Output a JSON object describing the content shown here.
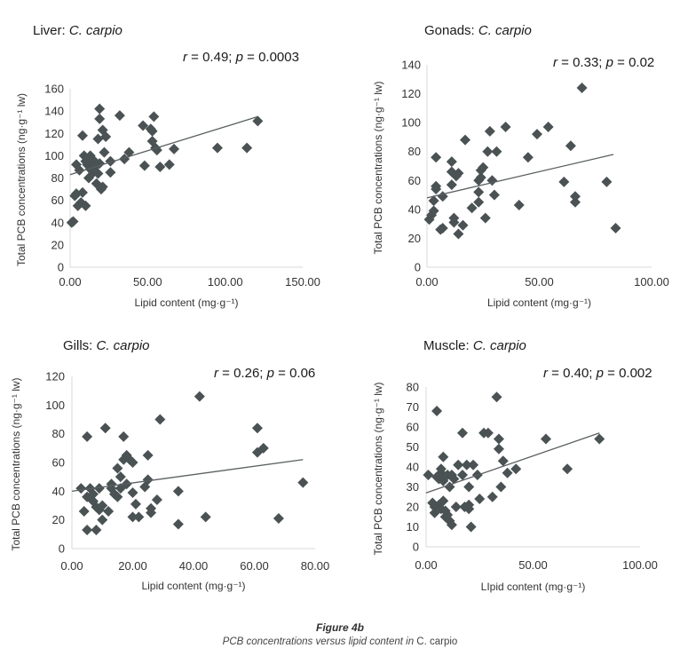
{
  "figure": {
    "title": "Figure 4b",
    "caption_pre": "PCB concentrations versus lipid content in ",
    "caption_species": "C. carpio"
  },
  "colors": {
    "marker": "#4a5254",
    "trend": "#5a5f60",
    "axis": "#d9d9d9"
  },
  "chart_data": [
    {
      "type": "scatter",
      "title_tissue": "Liver: ",
      "title_species": "C. carpio",
      "stat_r_label": "r",
      "stat_r": " = 0.49; ",
      "stat_p_label": "p",
      "stat_p": " = 0.0003",
      "xlabel": "Lipid content (mg·g⁻¹)",
      "ylabel": "Total PCB concentrations (ng·g⁻¹ lw)",
      "xlim": [
        0,
        150
      ],
      "ylim": [
        0,
        160
      ],
      "xticks": [
        "0.00",
        "50.00",
        "100.00",
        "150.00"
      ],
      "xtick_values": [
        0,
        50,
        100,
        150
      ],
      "yticks": [
        "0",
        "20",
        "40",
        "60",
        "80",
        "100",
        "120",
        "140",
        "160"
      ],
      "ytick_values": [
        0,
        20,
        40,
        60,
        80,
        100,
        120,
        140,
        160
      ],
      "trend": [
        [
          0,
          83
        ],
        [
          121,
          135
        ]
      ],
      "points": [
        [
          1,
          40
        ],
        [
          2,
          41
        ],
        [
          3,
          64
        ],
        [
          4,
          66
        ],
        [
          5,
          55
        ],
        [
          7,
          58
        ],
        [
          4,
          92
        ],
        [
          6,
          87
        ],
        [
          8,
          67
        ],
        [
          10,
          55
        ],
        [
          8,
          118
        ],
        [
          9,
          100
        ],
        [
          10,
          95
        ],
        [
          11,
          92
        ],
        [
          12,
          97
        ],
        [
          13,
          88
        ],
        [
          14,
          93
        ],
        [
          15,
          96
        ],
        [
          12,
          80
        ],
        [
          16,
          90
        ],
        [
          15,
          85
        ],
        [
          13,
          100
        ],
        [
          17,
          75
        ],
        [
          18,
          84
        ],
        [
          19,
          93
        ],
        [
          20,
          70
        ],
        [
          21,
          72
        ],
        [
          19,
          142
        ],
        [
          19,
          133
        ],
        [
          18,
          115
        ],
        [
          21,
          123
        ],
        [
          22,
          103
        ],
        [
          23,
          117
        ],
        [
          26,
          95
        ],
        [
          26,
          85
        ],
        [
          32,
          136
        ],
        [
          35,
          97
        ],
        [
          38,
          103
        ],
        [
          47,
          127
        ],
        [
          48,
          91
        ],
        [
          52,
          124
        ],
        [
          53,
          122
        ],
        [
          54,
          135
        ],
        [
          53,
          113
        ],
        [
          55,
          107
        ],
        [
          56,
          105
        ],
        [
          58,
          90
        ],
        [
          64,
          92
        ],
        [
          67,
          106
        ],
        [
          95,
          107
        ],
        [
          114,
          107
        ],
        [
          121,
          131
        ]
      ]
    },
    {
      "type": "scatter",
      "title_tissue": "Gonads: ",
      "title_species": "C. carpio",
      "stat_r_label": "r",
      "stat_r": " = 0.33; ",
      "stat_p_label": "p",
      "stat_p": " = 0.02",
      "xlabel": "Lipid content (mg·g⁻¹)",
      "ylabel": "Total PCB concentrations (ng·g⁻¹ lw)",
      "xlim": [
        0,
        100
      ],
      "ylim": [
        0,
        140
      ],
      "xticks": [
        "0.00",
        "50.00",
        "100.00"
      ],
      "xtick_values": [
        0,
        50,
        100
      ],
      "yticks": [
        "0",
        "20",
        "40",
        "60",
        "80",
        "100",
        "120",
        "140"
      ],
      "ytick_values": [
        0,
        20,
        40,
        60,
        80,
        100,
        120,
        140
      ],
      "trend": [
        [
          0,
          48
        ],
        [
          83,
          78
        ]
      ],
      "points": [
        [
          1,
          33
        ],
        [
          2,
          36
        ],
        [
          3,
          39
        ],
        [
          3,
          46
        ],
        [
          4,
          56
        ],
        [
          4,
          54
        ],
        [
          4,
          76
        ],
        [
          6,
          26
        ],
        [
          7,
          27
        ],
        [
          7,
          49
        ],
        [
          11,
          73
        ],
        [
          11,
          57
        ],
        [
          11,
          66
        ],
        [
          12,
          31
        ],
        [
          12,
          34
        ],
        [
          13,
          63
        ],
        [
          14,
          65
        ],
        [
          14,
          23
        ],
        [
          16,
          29
        ],
        [
          17,
          88
        ],
        [
          20,
          41
        ],
        [
          23,
          60
        ],
        [
          23,
          52
        ],
        [
          23,
          45
        ],
        [
          24,
          67
        ],
        [
          24,
          62
        ],
        [
          25,
          69
        ],
        [
          26,
          34
        ],
        [
          27,
          80
        ],
        [
          28,
          94
        ],
        [
          29,
          60
        ],
        [
          30,
          50
        ],
        [
          31,
          80
        ],
        [
          35,
          97
        ],
        [
          41,
          43
        ],
        [
          45,
          76
        ],
        [
          49,
          92
        ],
        [
          54,
          97
        ],
        [
          61,
          59
        ],
        [
          64,
          84
        ],
        [
          66,
          49
        ],
        [
          66,
          45
        ],
        [
          69,
          124
        ],
        [
          80,
          59
        ],
        [
          84,
          27
        ]
      ]
    },
    {
      "type": "scatter",
      "title_tissue": "Gills: ",
      "title_species": "C. carpio",
      "stat_r_label": "r",
      "stat_r": " = 0.26; ",
      "stat_p_label": "p",
      "stat_p": " = 0.06",
      "xlabel": "Lipid content (mg·g⁻¹)",
      "ylabel": "Total PCB concentrations (ng·g⁻¹ lw)",
      "xlim": [
        0,
        80
      ],
      "ylim": [
        0,
        120
      ],
      "xticks": [
        "0.00",
        "20.00",
        "40.00",
        "60.00",
        "80.00"
      ],
      "xtick_values": [
        0,
        20,
        40,
        60,
        80
      ],
      "yticks": [
        "0",
        "20",
        "40",
        "60",
        "80",
        "100",
        "120"
      ],
      "ytick_values": [
        0,
        20,
        40,
        60,
        80,
        100,
        120
      ],
      "trend": [
        [
          0,
          40
        ],
        [
          76,
          62
        ]
      ],
      "points": [
        [
          3,
          42
        ],
        [
          4,
          26
        ],
        [
          5,
          36
        ],
        [
          5,
          13
        ],
        [
          5,
          78
        ],
        [
          6,
          42
        ],
        [
          7,
          38
        ],
        [
          7,
          33
        ],
        [
          8,
          13
        ],
        [
          8,
          29
        ],
        [
          9,
          27
        ],
        [
          9,
          42
        ],
        [
          10,
          30
        ],
        [
          10,
          20
        ],
        [
          11,
          84
        ],
        [
          12,
          26
        ],
        [
          13,
          45
        ],
        [
          13,
          42
        ],
        [
          14,
          38
        ],
        [
          15,
          36
        ],
        [
          15,
          56
        ],
        [
          16,
          50
        ],
        [
          16,
          42
        ],
        [
          17,
          62
        ],
        [
          17,
          78
        ],
        [
          18,
          65
        ],
        [
          18,
          45
        ],
        [
          19,
          62
        ],
        [
          20,
          39
        ],
        [
          20,
          60
        ],
        [
          20,
          22
        ],
        [
          21,
          31
        ],
        [
          22,
          22
        ],
        [
          24,
          43
        ],
        [
          25,
          48
        ],
        [
          25,
          65
        ],
        [
          26,
          28
        ],
        [
          26,
          25
        ],
        [
          28,
          34
        ],
        [
          29,
          90
        ],
        [
          35,
          40
        ],
        [
          35,
          17
        ],
        [
          42,
          106
        ],
        [
          44,
          22
        ],
        [
          61,
          84
        ],
        [
          61,
          67
        ],
        [
          63,
          70
        ],
        [
          68,
          21
        ],
        [
          76,
          46
        ]
      ]
    },
    {
      "type": "scatter",
      "title_tissue": "Muscle: ",
      "title_species": "C. carpio",
      "stat_r_label": "r",
      "stat_r": " = 0.40; ",
      "stat_p_label": "p",
      "stat_p": " = 0.002",
      "xlabel": "LIpid content (mg·g⁻¹)",
      "ylabel": "Total PCB concentrations (ng·g⁻¹ lw)",
      "xlim": [
        0,
        100
      ],
      "ylim": [
        0,
        80
      ],
      "xticks": [
        "0.00",
        "50.00",
        "100.00"
      ],
      "xtick_values": [
        0,
        50,
        100
      ],
      "yticks": [
        "0",
        "10",
        "20",
        "30",
        "40",
        "50",
        "60",
        "70",
        "80"
      ],
      "ytick_values": [
        0,
        10,
        20,
        30,
        40,
        50,
        60,
        70,
        80
      ],
      "trend": [
        [
          0,
          27
        ],
        [
          81,
          57
        ]
      ],
      "points": [
        [
          1,
          36
        ],
        [
          3,
          22
        ],
        [
          4,
          20
        ],
        [
          4,
          17
        ],
        [
          5,
          35
        ],
        [
          5,
          68
        ],
        [
          6,
          34
        ],
        [
          6,
          21
        ],
        [
          7,
          37
        ],
        [
          7,
          19
        ],
        [
          7,
          39
        ],
        [
          8,
          45
        ],
        [
          8,
          33
        ],
        [
          8,
          23
        ],
        [
          9,
          18
        ],
        [
          9,
          15
        ],
        [
          10,
          36
        ],
        [
          10,
          16
        ],
        [
          11,
          30
        ],
        [
          11,
          13
        ],
        [
          12,
          11
        ],
        [
          12,
          36
        ],
        [
          13,
          34
        ],
        [
          14,
          20
        ],
        [
          15,
          41
        ],
        [
          17,
          36
        ],
        [
          17,
          57
        ],
        [
          18,
          20
        ],
        [
          19,
          41
        ],
        [
          20,
          30
        ],
        [
          20,
          21
        ],
        [
          20,
          19
        ],
        [
          21,
          10
        ],
        [
          22,
          41
        ],
        [
          24,
          36
        ],
        [
          25,
          24
        ],
        [
          27,
          57
        ],
        [
          29,
          57
        ],
        [
          31,
          25
        ],
        [
          33,
          75
        ],
        [
          34,
          54
        ],
        [
          34,
          49
        ],
        [
          35,
          30
        ],
        [
          36,
          43
        ],
        [
          38,
          37
        ],
        [
          42,
          39
        ],
        [
          56,
          54
        ],
        [
          66,
          39
        ],
        [
          81,
          54
        ]
      ]
    }
  ]
}
